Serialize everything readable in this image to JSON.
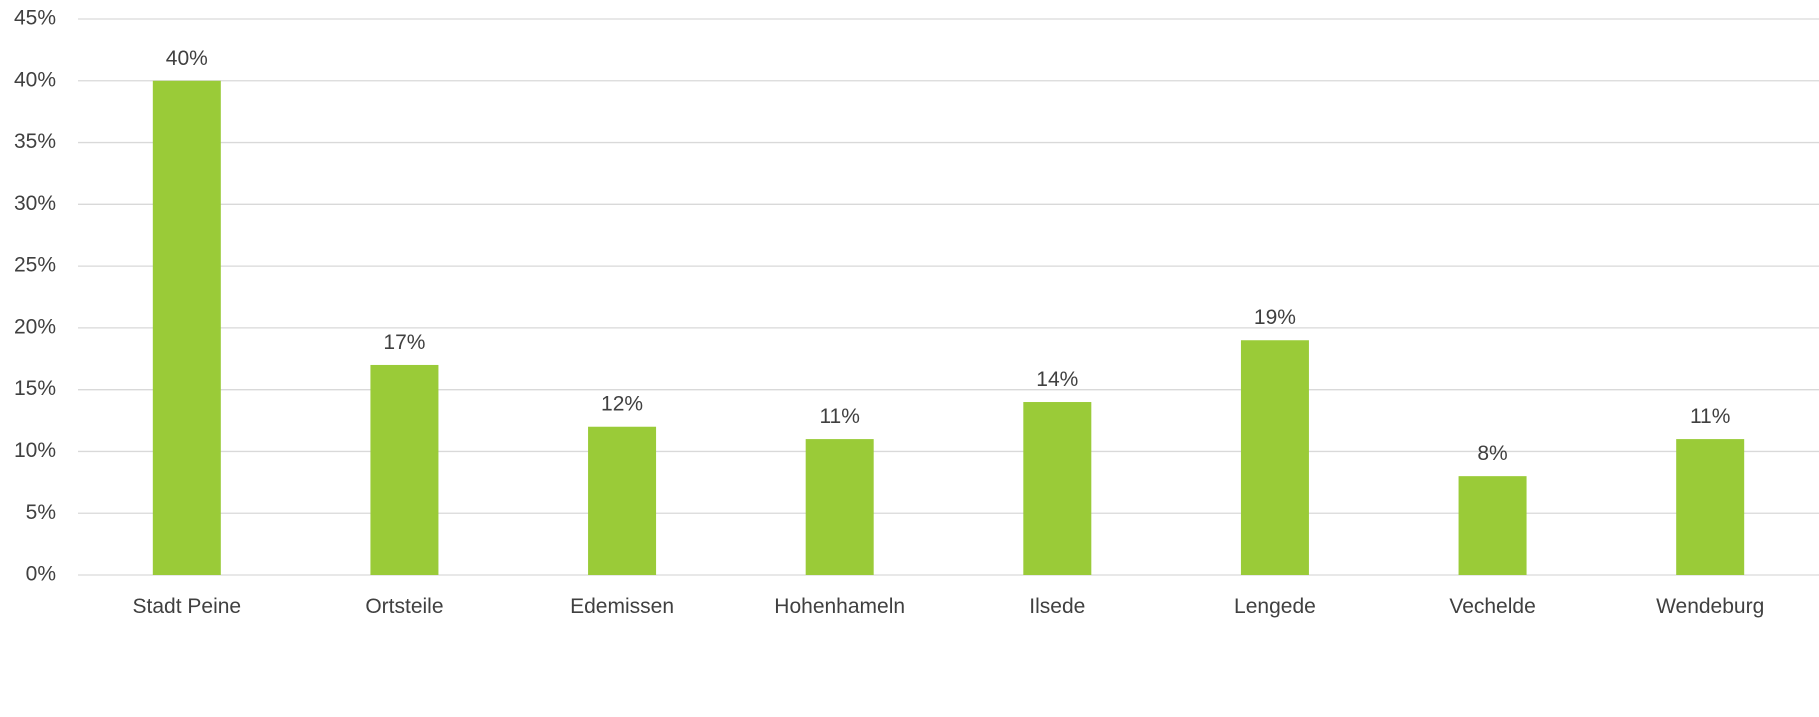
{
  "chart_data": {
    "type": "bar",
    "categories": [
      "Stadt Peine",
      "Ortsteile",
      "Edemissen",
      "Hohenhameln",
      "Ilsede",
      "Lengede",
      "Vechelde",
      "Wendeburg"
    ],
    "values": [
      40,
      17,
      12,
      11,
      14,
      19,
      8,
      11
    ],
    "data_labels": [
      "40%",
      "17%",
      "12%",
      "11%",
      "14%",
      "19%",
      "8%",
      "11%"
    ],
    "value_unit": "%",
    "ylim": [
      0,
      45
    ],
    "y_ticks": [
      0,
      5,
      10,
      15,
      20,
      25,
      30,
      35,
      40,
      45
    ],
    "y_tick_labels": [
      "0%",
      "5%",
      "10%",
      "15%",
      "20%",
      "25%",
      "30%",
      "35%",
      "40%",
      "45%"
    ],
    "grid": true,
    "legend": "none",
    "bar_color": "#9acb38",
    "grid_color": "#d9d9d9",
    "text_color": "#404040"
  }
}
